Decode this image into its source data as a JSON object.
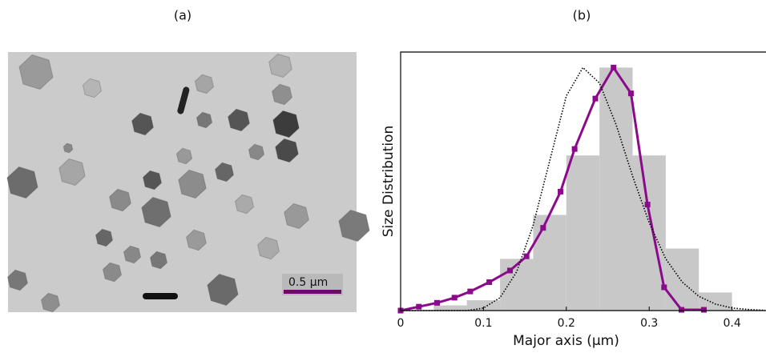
{
  "panel_a": {
    "label": "(a)",
    "scale_bar_label": "0.5 µm"
  },
  "chart_data": {
    "type": "histogram",
    "panel_label": "(b)",
    "x_label": "Major axis (µm)",
    "y_label": "Size Distribution",
    "bins": [
      0.04,
      0.08,
      0.12,
      0.16,
      0.2,
      0.24,
      0.28,
      0.32,
      0.36,
      0.4
    ],
    "counts": [
      0.02,
      0.04,
      0.2,
      0.37,
      0.6,
      0.94,
      0.6,
      0.24,
      0.07
    ],
    "color": "#c8c8c8",
    "series": [
      {
        "color": "#8b0a8b",
        "style": "line-markers",
        "x": [
          0,
          0.022,
          0.044,
          0.065,
          0.084,
          0.107,
          0.132,
          0.152,
          0.172,
          0.193,
          0.21,
          0.235,
          0.257,
          0.278,
          0.298,
          0.318,
          0.339,
          0.366
        ],
        "values": [
          0,
          0.015,
          0.03,
          0.05,
          0.074,
          0.11,
          0.155,
          0.21,
          0.32,
          0.46,
          0.625,
          0.82,
          0.94,
          0.84,
          0.41,
          0.09,
          0.003,
          0.003
        ]
      },
      {
        "color": "#000000",
        "style": "dotted",
        "x": [
          0,
          0.04,
          0.06,
          0.08,
          0.1,
          0.12,
          0.14,
          0.16,
          0.18,
          0.2,
          0.22,
          0.24,
          0.26,
          0.28,
          0.3,
          0.32,
          0.34,
          0.36,
          0.38,
          0.4,
          0.42,
          0.44
        ],
        "values": [
          0,
          0,
          0,
          0,
          0.01,
          0.05,
          0.15,
          0.33,
          0.58,
          0.83,
          0.94,
          0.88,
          0.72,
          0.52,
          0.34,
          0.2,
          0.11,
          0.055,
          0.025,
          0.01,
          0.004,
          0.001
        ]
      }
    ],
    "xlim": [
      0,
      0.441
    ],
    "ylim": [
      0,
      1
    ],
    "xticks": [
      0,
      0.1,
      0.2,
      0.3,
      0.4
    ]
  }
}
